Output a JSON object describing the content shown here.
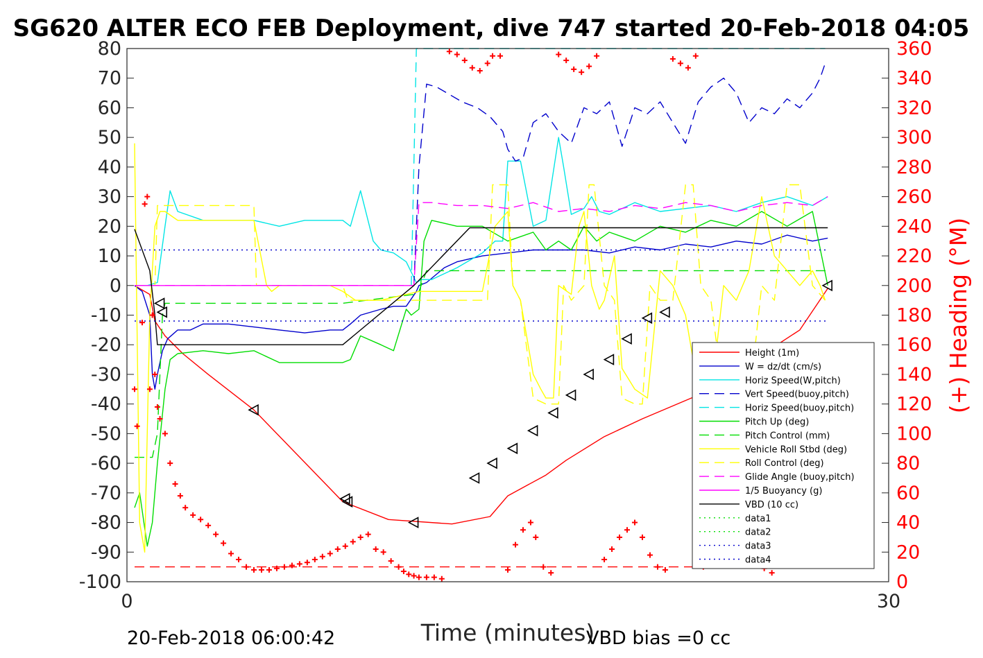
{
  "chart_data": {
    "type": "line",
    "title": "SG620 ALTER ECO FEB Deployment, dive 747 started 20-Feb-2018 04:05",
    "xlabel": "Time (minutes)",
    "ylabel_right": "(+) Heading (°M)",
    "xlim": [
      0,
      30
    ],
    "ylim": [
      -100,
      80
    ],
    "ylim_right": [
      0,
      360
    ],
    "x_ticks": [
      0,
      30
    ],
    "y_ticks": [
      80,
      70,
      60,
      50,
      40,
      30,
      20,
      10,
      0,
      -10,
      -20,
      -30,
      -40,
      -50,
      -60,
      -70,
      -80,
      -90,
      -100
    ],
    "y_ticks_right": [
      360,
      340,
      320,
      300,
      280,
      260,
      240,
      220,
      200,
      180,
      160,
      140,
      120,
      100,
      80,
      60,
      40,
      20,
      0
    ],
    "grid": false,
    "legend_position": "lower-right",
    "footer_left": "20-Feb-2018 06:00:42",
    "footer_right": "VBD bias =0 cc",
    "colors": {
      "red": "#ff0000",
      "blue": "#0000cc",
      "cyan": "#00e5e5",
      "green": "#00dd00",
      "yellow": "#ffff00",
      "magenta": "#ff00ff",
      "black": "#000000"
    },
    "series": [
      {
        "name": "Height (1m)",
        "color": "#ff0000",
        "style": "solid",
        "x": [
          0.3,
          0.9,
          1.1,
          1.5,
          2.2,
          3.2,
          5.0,
          8.5,
          10.3,
          12.8,
          14.3,
          15.0,
          16.5,
          17.3,
          18.8,
          20.3,
          22.5,
          24.0,
          26.5,
          27.6
        ],
        "y": [
          0,
          -3,
          -12,
          -17,
          -23,
          -30,
          -42,
          -73,
          -79,
          -80.5,
          -78,
          -71,
          -64,
          -59,
          -51,
          -45,
          -37,
          -29,
          -15,
          -1
        ]
      },
      {
        "name": "W = dz/dt (cm/s)",
        "color": "#0000cc",
        "style": "solid",
        "x": [
          0.3,
          0.6,
          0.9,
          1.0,
          1.1,
          1.2,
          1.4,
          1.6,
          2.0,
          2.5,
          3.0,
          4.0,
          5.0,
          6.0,
          7.0,
          8.0,
          8.5,
          8.8,
          9.2,
          10.0,
          10.5,
          11.0,
          11.4,
          11.5,
          11.8,
          12.5,
          13.0,
          14.0,
          15.0,
          16.0,
          17.0,
          18.0,
          19.0,
          20.0,
          21.0,
          22.0,
          23.0,
          24.0,
          25.0,
          26.0,
          27.0,
          27.6
        ],
        "y": [
          0,
          -2,
          -10,
          -30,
          -35,
          -30,
          -22,
          -18,
          -15,
          -15,
          -13,
          -13,
          -14,
          -15,
          -16,
          -15,
          -15,
          -13,
          -10,
          -8,
          -7,
          -7,
          -2,
          0,
          1,
          6,
          8,
          10,
          11,
          12,
          12,
          12,
          11,
          13,
          12,
          14,
          13,
          15,
          14,
          17,
          15,
          16
        ]
      },
      {
        "name": "Horiz Speed(W,pitch)",
        "color": "#00e5e5",
        "style": "solid",
        "x": [
          0.3,
          0.8,
          1.2,
          1.5,
          1.7,
          2.0,
          3.0,
          4.0,
          5.0,
          6.0,
          7.0,
          8.0,
          8.5,
          8.8,
          9.2,
          9.7,
          10.0,
          10.5,
          11.0,
          11.4,
          11.6,
          12.0,
          13.0,
          14.0,
          14.5,
          14.8,
          15.0,
          15.5,
          16.0,
          16.5,
          17.0,
          17.2,
          17.5,
          18.0,
          18.3,
          18.6,
          19.0,
          19.5,
          20.0,
          21.0,
          22.0,
          23.0,
          24.0,
          25.0,
          26.0,
          27.0,
          27.6
        ],
        "y": [
          0,
          0,
          1,
          20,
          32,
          25,
          22,
          22,
          22,
          20,
          22,
          22,
          22,
          20,
          32,
          15,
          12,
          11,
          8,
          1,
          2,
          2,
          6,
          11,
          15,
          15,
          42,
          42,
          20,
          22,
          50,
          40,
          24,
          26,
          30,
          25,
          24,
          26,
          28,
          25,
          26,
          27,
          25,
          28,
          30,
          27,
          30
        ]
      },
      {
        "name": "Vert Speed(buoy,pitch)",
        "color": "#0000cc",
        "style": "dash",
        "x": [
          11.3,
          11.5,
          11.8,
          12.2,
          12.6,
          13.2,
          13.8,
          14.3,
          14.8,
          15.0,
          15.3,
          15.6,
          16.0,
          16.5,
          17.0,
          17.5,
          18.0,
          18.5,
          19.0,
          19.5,
          20.0,
          20.5,
          21.0,
          21.5,
          22.0,
          22.5,
          23.0,
          23.5,
          24.0,
          24.5,
          25.0,
          25.5,
          26.0,
          26.5,
          27.0,
          27.3,
          27.5
        ],
        "y": [
          0,
          40,
          68,
          67,
          65,
          62,
          60,
          57,
          52,
          46,
          42,
          43,
          55,
          58,
          52,
          48,
          60,
          58,
          62,
          47,
          60,
          58,
          62,
          55,
          48,
          62,
          67,
          70,
          65,
          55,
          60,
          58,
          63,
          60,
          65,
          70,
          75
        ]
      },
      {
        "name": "Horiz Speed(buoy,pitch)",
        "color": "#00e5e5",
        "style": "dash",
        "x": [
          11.2,
          11.4,
          11.6,
          27.4,
          27.5
        ],
        "y": [
          0,
          80,
          80,
          80,
          80
        ]
      },
      {
        "name": "Pitch Up (deg)",
        "color": "#00dd00",
        "style": "solid",
        "x": [
          0.3,
          0.5,
          0.8,
          1.0,
          1.2,
          1.5,
          1.7,
          2.0,
          3.0,
          4.0,
          5.0,
          6.0,
          7.0,
          8.0,
          8.5,
          8.8,
          9.2,
          10.0,
          10.5,
          11.0,
          11.2,
          11.5,
          11.7,
          12.0,
          13.0,
          14.0,
          15.0,
          16.0,
          16.5,
          17.0,
          17.5,
          18.0,
          18.5,
          19.0,
          20.0,
          21.0,
          22.0,
          23.0,
          24.0,
          25.0,
          26.0,
          27.0,
          27.6
        ],
        "y": [
          -75,
          -70,
          -88,
          -80,
          -60,
          -35,
          -25,
          -23,
          -22,
          -23,
          -22,
          -26,
          -26,
          -26,
          -26,
          -25,
          -17,
          -20,
          -22,
          -8,
          -10,
          -8,
          15,
          22,
          20,
          20,
          15,
          18,
          12,
          15,
          12,
          20,
          15,
          18,
          15,
          20,
          18,
          22,
          20,
          25,
          20,
          25,
          0
        ]
      },
      {
        "name": "Pitch Control (mm)",
        "color": "#00dd00",
        "style": "dash",
        "x": [
          0.3,
          1.0,
          1.2,
          1.4,
          1.5,
          8.5,
          11.3,
          11.5,
          11.8,
          16.0,
          27.6
        ],
        "y": [
          -58,
          -58,
          -50,
          -10,
          -6,
          -6,
          -3,
          -2,
          5,
          5,
          5
        ]
      },
      {
        "name": "Vehicle Roll Stbd (deg)",
        "color": "#ffff00",
        "style": "solid",
        "x": [
          0.3,
          0.5,
          0.7,
          0.9,
          1.1,
          1.3,
          1.5,
          2.0,
          3.0,
          4.0,
          5.0,
          5.5,
          5.7,
          6.0,
          7.0,
          8.0,
          8.5,
          9.0,
          10.0,
          11.0,
          11.5,
          12.0,
          13.0,
          14.0,
          14.5,
          15.0,
          15.2,
          15.5,
          16.0,
          16.3,
          16.5,
          16.8,
          17.0,
          17.5,
          17.8,
          18.0,
          18.3,
          18.6,
          18.8,
          19.2,
          19.5,
          20.0,
          20.5,
          21.0,
          21.5,
          22.0,
          22.5,
          23.0,
          23.5,
          24.0,
          24.5,
          25.0,
          25.5,
          26.0,
          26.5,
          27.0,
          27.3,
          27.5
        ],
        "y": [
          48,
          -80,
          -90,
          -10,
          20,
          25,
          25,
          22,
          22,
          22,
          22,
          0,
          -2,
          0,
          0,
          0,
          -2,
          -5,
          -5,
          -3,
          -2,
          -2,
          -2,
          -2,
          20,
          25,
          0,
          -5,
          -30,
          -35,
          -38,
          -38,
          0,
          -3,
          20,
          25,
          0,
          -8,
          -5,
          10,
          -28,
          -35,
          -38,
          5,
          0,
          -10,
          -35,
          -38,
          0,
          -5,
          5,
          30,
          10,
          5,
          0,
          5,
          0,
          -5
        ]
      },
      {
        "name": "Roll Control (deg)",
        "color": "#ffff00",
        "style": "dash",
        "x": [
          0.3,
          1.1,
          1.2,
          1.4,
          5.0,
          5.1,
          8.5,
          8.7,
          11.3,
          14.2,
          14.4,
          15.0,
          15.2,
          15.5,
          16.0,
          16.5,
          17.0,
          17.2,
          17.5,
          18.0,
          18.2,
          18.4,
          18.8,
          19.2,
          19.5,
          20.0,
          20.3,
          20.6,
          21.0,
          21.5,
          22.0,
          22.3,
          22.6,
          23.0,
          23.5,
          24.0,
          24.5,
          25.0,
          25.5,
          26.0,
          26.5,
          27.0,
          27.5
        ],
        "y": [
          0,
          0,
          27,
          27,
          27,
          0,
          0,
          -5,
          -5,
          -5,
          34,
          34,
          0,
          -5,
          -38,
          -40,
          -40,
          0,
          -5,
          0,
          34,
          34,
          0,
          -5,
          -38,
          -40,
          -40,
          0,
          -5,
          -5,
          34,
          34,
          0,
          -5,
          -38,
          -40,
          -40,
          0,
          -5,
          34,
          34,
          0,
          -5
        ]
      },
      {
        "name": "Glide Angle (buoy,pitch)",
        "color": "#ff00ff",
        "style": "dash",
        "x": [
          0.3,
          11.3,
          11.5,
          12.0,
          13.0,
          14.0,
          15.0,
          16.0,
          17.0,
          18.0,
          19.0,
          20.0,
          21.0,
          22.0,
          23.0,
          24.0,
          25.0,
          26.0,
          27.0,
          27.6
        ],
        "y": [
          0,
          0,
          28,
          28,
          27,
          27,
          26,
          28,
          25,
          26,
          25,
          27,
          26,
          28,
          27,
          25,
          27,
          28,
          27,
          30
        ]
      },
      {
        "name": "1/5 Buoyancy (g)",
        "color": "#ff00ff",
        "style": "solid",
        "x": [
          0.3,
          11.3
        ],
        "y": [
          0,
          0
        ]
      },
      {
        "name": "VBD (10 cc)",
        "color": "#000000",
        "style": "solid",
        "x": [
          0.3,
          0.9,
          1.1,
          1.2,
          8.5,
          11.3,
          13.5,
          27.6
        ],
        "y": [
          19,
          5,
          -10,
          -20,
          -20,
          0,
          19.5,
          19.5
        ]
      },
      {
        "name": "data1",
        "color": "#00dd00",
        "style": "dot",
        "x": [],
        "y": []
      },
      {
        "name": "data2",
        "color": "#00dd00",
        "style": "dot",
        "x": [],
        "y": []
      },
      {
        "name": "data3",
        "color": "#0000cc",
        "style": "dot",
        "x": [
          0.3,
          27.6
        ],
        "y": [
          12,
          12
        ]
      },
      {
        "name": "data4",
        "color": "#0000cc",
        "style": "dot",
        "x": [
          0.3,
          27.6
        ],
        "y": [
          -12,
          -12
        ]
      }
    ],
    "extra_lines": [
      {
        "color": "#ff0000",
        "style": "dash",
        "x": [
          0.3,
          27.6
        ],
        "y": [
          -95,
          -95
        ]
      },
      {
        "color": "#9900ff",
        "style": "dash",
        "x": [
          0.3,
          11.3
        ],
        "y": [
          0,
          0
        ]
      }
    ],
    "height_markers": {
      "x": [
        1.3,
        1.4,
        5.0,
        8.6,
        8.7,
        11.3,
        13.7,
        14.4,
        15.2,
        16.0,
        16.8,
        17.5,
        18.2,
        19.0,
        19.7,
        20.5,
        21.2,
        27.6
      ],
      "y": [
        -6,
        -9,
        -42,
        -72,
        -73,
        -80,
        -65,
        -60,
        -55,
        -49,
        -43,
        -37,
        -30,
        -25,
        -18,
        -11,
        -9,
        0
      ]
    },
    "heading": {
      "name": "Heading",
      "color": "#ff0000",
      "x": [
        0.3,
        0.4,
        0.6,
        0.7,
        0.8,
        0.9,
        1.0,
        1.1,
        1.2,
        1.3,
        1.5,
        1.7,
        1.9,
        2.1,
        2.3,
        2.6,
        2.9,
        3.2,
        3.5,
        3.8,
        4.1,
        4.4,
        4.7,
        5.0,
        5.3,
        5.6,
        5.9,
        6.2,
        6.5,
        6.8,
        7.1,
        7.4,
        7.7,
        8.0,
        8.3,
        8.6,
        8.9,
        9.2,
        9.5,
        9.8,
        10.1,
        10.4,
        10.7,
        10.9,
        11.1,
        11.3,
        11.5,
        11.8,
        12.1,
        12.4,
        12.7,
        13.0,
        13.3,
        13.6,
        13.9,
        14.2,
        14.4,
        14.7,
        15.0,
        15.3,
        15.6,
        15.9,
        16.1,
        16.4,
        16.7,
        17.0,
        17.3,
        17.6,
        17.9,
        18.2,
        18.5,
        18.8,
        19.1,
        19.4,
        19.7,
        20.0,
        20.3,
        20.6,
        20.9,
        21.2,
        21.5,
        21.8,
        22.1,
        22.4,
        22.7,
        23.0,
        23.3,
        23.6,
        23.9,
        24.2,
        24.5,
        24.8,
        25.1,
        25.4,
        25.7,
        26.0,
        26.3,
        26.6,
        26.9,
        27.2,
        27.5
      ],
      "y": [
        130,
        105,
        175,
        255,
        260,
        130,
        180,
        140,
        118,
        110,
        100,
        80,
        66,
        58,
        50,
        45,
        42,
        38,
        32,
        26,
        19,
        15,
        10,
        8,
        8,
        8,
        9,
        10,
        11,
        12,
        13,
        15,
        17,
        19,
        22,
        24,
        27,
        30,
        32,
        22,
        20,
        14,
        10,
        7,
        5,
        4,
        3,
        3,
        3,
        2,
        358,
        356,
        352,
        347,
        345,
        350,
        355,
        355,
        8,
        25,
        35,
        40,
        30,
        10,
        6,
        356,
        352,
        346,
        344,
        348,
        355,
        15,
        22,
        30,
        35,
        40,
        30,
        18,
        10,
        8,
        353,
        350,
        347,
        355,
        10,
        15,
        20,
        22,
        28,
        30,
        26,
        18,
        9,
        6,
        14,
        20,
        23,
        25,
        26,
        22,
        20
      ]
    },
    "legend_entries": [
      {
        "name": "Height (1m)",
        "color": "#ff0000",
        "style": "solid"
      },
      {
        "name": "W = dz/dt (cm/s)",
        "color": "#0000cc",
        "style": "solid"
      },
      {
        "name": "Horiz Speed(W,pitch)",
        "color": "#00e5e5",
        "style": "solid"
      },
      {
        "name": "Vert Speed(buoy,pitch)",
        "color": "#0000cc",
        "style": "dash"
      },
      {
        "name": "Horiz Speed(buoy,pitch)",
        "color": "#00e5e5",
        "style": "dash"
      },
      {
        "name": "Pitch Up (deg)",
        "color": "#00dd00",
        "style": "solid"
      },
      {
        "name": "Pitch Control (mm)",
        "color": "#00dd00",
        "style": "dash"
      },
      {
        "name": "Vehicle Roll Stbd (deg)",
        "color": "#ffff00",
        "style": "solid"
      },
      {
        "name": "Roll Control (deg)",
        "color": "#ffff00",
        "style": "dash"
      },
      {
        "name": "Glide Angle (buoy,pitch)",
        "color": "#ff00ff",
        "style": "dash"
      },
      {
        "name": "1/5 Buoyancy (g)",
        "color": "#ff00ff",
        "style": "solid"
      },
      {
        "name": "VBD (10 cc)",
        "color": "#000000",
        "style": "solid"
      },
      {
        "name": "data1",
        "color": "#00dd00",
        "style": "dot"
      },
      {
        "name": "data2",
        "color": "#00dd00",
        "style": "dot"
      },
      {
        "name": "data3",
        "color": "#0000cc",
        "style": "dot"
      },
      {
        "name": "data4",
        "color": "#0000cc",
        "style": "dot"
      }
    ]
  }
}
